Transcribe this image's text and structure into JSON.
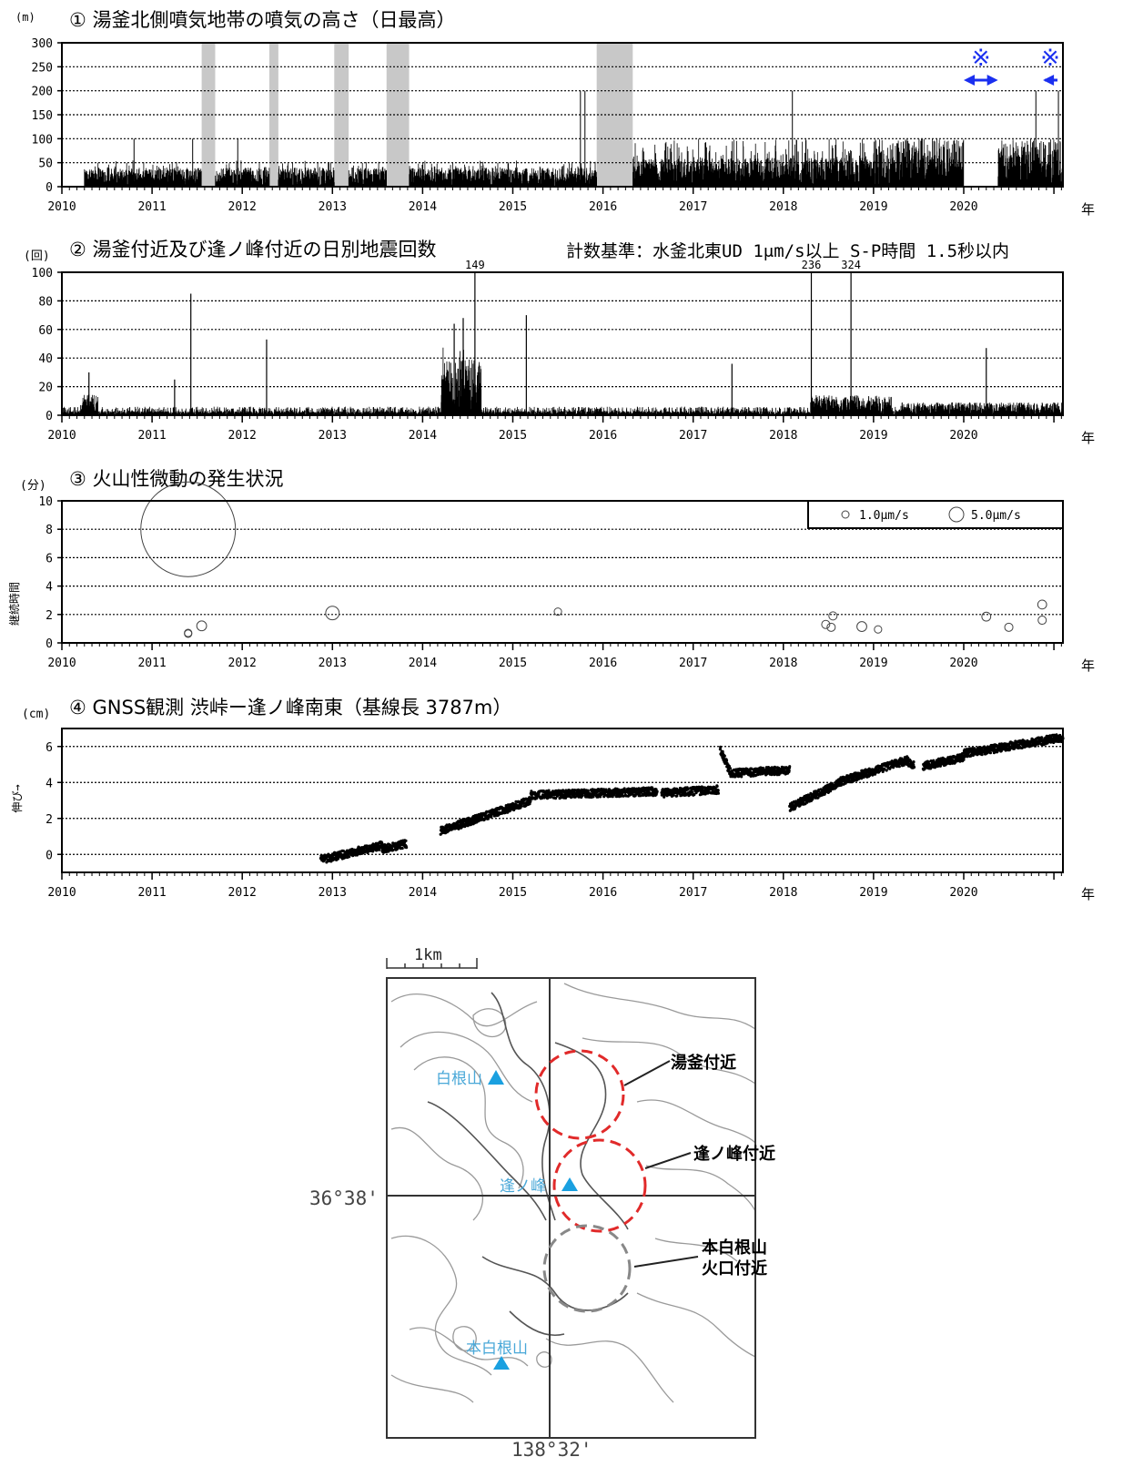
{
  "year_axis": {
    "ticks": [
      "2010",
      "2011",
      "2012",
      "2013",
      "2014",
      "2015",
      "2016",
      "2017",
      "2018",
      "2019",
      "2020"
    ],
    "unit_suffix": "年"
  },
  "panel1": {
    "title": "① 湯釜北側噴気地帯の噴気の高さ（日最高）",
    "unit": "(m)",
    "marker_symbol": "※"
  },
  "panel2": {
    "title": "② 湯釜付近及び逢ノ峰付近の日別地震回数",
    "note": "計数基準：水釜北東UD 1μm/s以上 S-P時間 1.5秒以内",
    "unit": "(回)"
  },
  "panel3": {
    "title": "③ 火山性微動の発生状況",
    "unit": "(分)",
    "ylabel": "継続時間",
    "legend": [
      "1.0μm/s",
      "5.0μm/s"
    ]
  },
  "panel4": {
    "title": "④ GNSS観測 渋峠ー逢ノ峰南東（基線長 3787m）",
    "unit": "(cm)",
    "ylabel": "伸び→"
  },
  "map": {
    "scale_label": "1km",
    "lat_label": "36°38'",
    "lon_label": "138°32'",
    "peaks": [
      "白根山",
      "逢ノ峰",
      "本白根山"
    ],
    "areas": [
      "湯釜付近",
      "逢ノ峰付近",
      "本白根山",
      "火口付近"
    ]
  },
  "chart_data": [
    {
      "type": "bar",
      "title": "① 湯釜北側噴気地帯の噴気の高さ（日最高）",
      "ylabel": "(m)",
      "xlabel": "年",
      "xlim": [
        2010.0,
        2021.1
      ],
      "ylim": [
        0,
        300
      ],
      "yticks": [
        0,
        50,
        100,
        150,
        200,
        250,
        300
      ],
      "grid": true,
      "missing_periods": [
        [
          2011.55,
          2011.7
        ],
        [
          2012.3,
          2012.4
        ],
        [
          2013.02,
          2013.18
        ],
        [
          2013.6,
          2013.85
        ],
        [
          2015.93,
          2016.33
        ]
      ],
      "marked_periods": [
        [
          2020.0,
          2020.38
        ],
        [
          2021.0,
          2021.1
        ]
      ],
      "peak_values": [
        {
          "x": 2010.8,
          "y": 100
        },
        {
          "x": 2011.45,
          "y": 100
        },
        {
          "x": 2011.95,
          "y": 100
        },
        {
          "x": 2015.75,
          "y": 200
        },
        {
          "x": 2015.8,
          "y": 200
        },
        {
          "x": 2018.1,
          "y": 200
        },
        {
          "x": 2020.8,
          "y": 200
        },
        {
          "x": 2021.05,
          "y": 200
        }
      ],
      "typical_level": 25
    },
    {
      "type": "bar",
      "title": "② 湯釜付近及び逢ノ峰付近の日別地震回数",
      "ylabel": "(回)",
      "xlabel": "年",
      "xlim": [
        2010.0,
        2021.1
      ],
      "ylim": [
        0,
        100
      ],
      "yticks": [
        0,
        20,
        40,
        60,
        80,
        100
      ],
      "grid": true,
      "peak_values": [
        {
          "x": 2010.3,
          "y": 30
        },
        {
          "x": 2011.25,
          "y": 25
        },
        {
          "x": 2011.43,
          "y": 85
        },
        {
          "x": 2012.27,
          "y": 53
        },
        {
          "x": 2014.35,
          "y": 64
        },
        {
          "x": 2014.45,
          "y": 68
        },
        {
          "x": 2014.58,
          "y": 149
        },
        {
          "x": 2015.15,
          "y": 70
        },
        {
          "x": 2017.43,
          "y": 36
        },
        {
          "x": 2018.31,
          "y": 236
        },
        {
          "x": 2018.75,
          "y": 324
        },
        {
          "x": 2020.25,
          "y": 47
        }
      ],
      "data_labels": [
        "149",
        "236",
        "324"
      ]
    },
    {
      "type": "scatter",
      "title": "③ 火山性微動の発生状況",
      "ylabel": "継続時間",
      "unit": "(分)",
      "xlabel": "年",
      "xlim": [
        2010.0,
        2021.1
      ],
      "ylim": [
        0,
        10
      ],
      "yticks": [
        0,
        2,
        4,
        6,
        8,
        10
      ],
      "grid": true,
      "legend_position": "top-right",
      "size_legend": [
        "1.0μm/s",
        "5.0μm/s"
      ],
      "points": [
        {
          "x": 2011.4,
          "y": 8.0,
          "amp": 10.0
        },
        {
          "x": 2011.4,
          "y": 0.7,
          "amp": 0.8
        },
        {
          "x": 2011.4,
          "y": 0.65,
          "amp": 0.8
        },
        {
          "x": 2011.55,
          "y": 1.2,
          "amp": 1.5
        },
        {
          "x": 2013.0,
          "y": 2.1,
          "amp": 3.0
        },
        {
          "x": 2015.5,
          "y": 2.2,
          "amp": 0.8
        },
        {
          "x": 2018.47,
          "y": 1.3,
          "amp": 1.0
        },
        {
          "x": 2018.53,
          "y": 1.1,
          "amp": 1.0
        },
        {
          "x": 2018.55,
          "y": 1.9,
          "amp": 1.0
        },
        {
          "x": 2018.87,
          "y": 1.15,
          "amp": 1.5
        },
        {
          "x": 2019.05,
          "y": 0.95,
          "amp": 0.8
        },
        {
          "x": 2020.25,
          "y": 1.85,
          "amp": 1.2
        },
        {
          "x": 2020.5,
          "y": 1.1,
          "amp": 1.0
        },
        {
          "x": 2020.87,
          "y": 2.7,
          "amp": 1.2
        },
        {
          "x": 2020.87,
          "y": 1.6,
          "amp": 1.0
        }
      ]
    },
    {
      "type": "scatter",
      "title": "④ GNSS観測 渋峠ー逢ノ峰南東（基線長 3787m）",
      "ylabel": "伸び→",
      "unit": "(cm)",
      "xlabel": "年",
      "xlim": [
        2010.0,
        2021.1
      ],
      "ylim": [
        -1,
        7
      ],
      "yticks": [
        0,
        2,
        4,
        6
      ],
      "grid": true,
      "segments": [
        {
          "start": [
            2012.87,
            -0.3
          ],
          "end": [
            2013.55,
            0.5
          ]
        },
        {
          "start": [
            2013.55,
            0.3
          ],
          "end": [
            2013.82,
            0.6
          ]
        },
        {
          "start": [
            2014.2,
            1.3
          ],
          "end": [
            2015.2,
            3.0
          ]
        },
        {
          "start": [
            2015.2,
            3.3
          ],
          "end": [
            2016.6,
            3.5
          ]
        },
        {
          "start": [
            2016.65,
            3.4
          ],
          "end": [
            2017.28,
            3.6
          ]
        },
        {
          "start": [
            2017.3,
            5.8
          ],
          "end": [
            2017.42,
            4.5
          ]
        },
        {
          "start": [
            2017.42,
            4.5
          ],
          "end": [
            2018.07,
            4.7
          ]
        },
        {
          "start": [
            2018.07,
            2.6
          ],
          "end": [
            2018.6,
            3.9
          ]
        },
        {
          "start": [
            2018.6,
            4.0
          ],
          "end": [
            2019.35,
            5.2
          ]
        },
        {
          "start": [
            2019.35,
            5.3
          ],
          "end": [
            2019.45,
            4.9
          ]
        },
        {
          "start": [
            2019.55,
            4.9
          ],
          "end": [
            2020.0,
            5.4
          ]
        },
        {
          "start": [
            2020.0,
            5.6
          ],
          "end": [
            2021.1,
            6.5
          ]
        }
      ]
    }
  ]
}
